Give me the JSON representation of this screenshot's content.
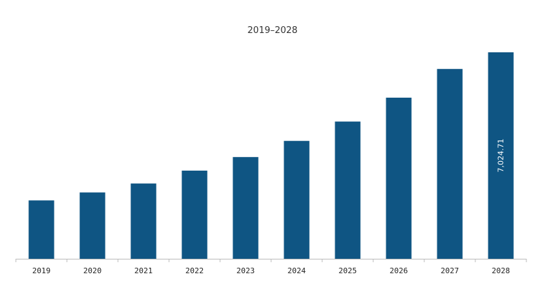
{
  "chart_data": {
    "type": "bar",
    "title": "2019–2028",
    "xlabel": "",
    "ylabel": "",
    "categories": [
      "2019",
      "2020",
      "2021",
      "2022",
      "2023",
      "2024",
      "2025",
      "2026",
      "2027",
      "2028"
    ],
    "values": [
      1985,
      2257,
      2561,
      3000,
      3462,
      4012,
      4670,
      5482,
      6457,
      7024.71
    ],
    "ylim": [
      0,
      7500
    ],
    "grid": false,
    "legend": "none",
    "bar_color": "#0f5583",
    "axis_color": "#bbbbbb",
    "data_labels": [
      {
        "category": "2028",
        "text": "7,024.71"
      }
    ]
  }
}
